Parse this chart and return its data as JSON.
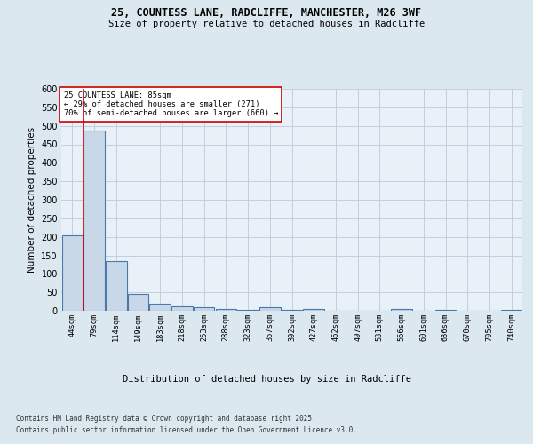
{
  "title_line1": "25, COUNTESS LANE, RADCLIFFE, MANCHESTER, M26 3WF",
  "title_line2": "Size of property relative to detached houses in Radcliffe",
  "xlabel": "Distribution of detached houses by size in Radcliffe",
  "ylabel": "Number of detached properties",
  "bar_labels": [
    "44sqm",
    "79sqm",
    "114sqm",
    "149sqm",
    "183sqm",
    "218sqm",
    "253sqm",
    "288sqm",
    "323sqm",
    "357sqm",
    "392sqm",
    "427sqm",
    "462sqm",
    "497sqm",
    "531sqm",
    "566sqm",
    "601sqm",
    "636sqm",
    "670sqm",
    "705sqm",
    "740sqm"
  ],
  "bar_values": [
    203,
    487,
    135,
    45,
    20,
    13,
    10,
    6,
    2,
    10,
    2,
    4,
    1,
    1,
    1,
    6,
    1,
    3,
    1,
    1,
    3
  ],
  "bar_color": "#c8d8e8",
  "bar_edge_color": "#4a7aaa",
  "subject_line_color": "#cc0000",
  "annotation_text": "25 COUNTESS LANE: 85sqm\n← 29% of detached houses are smaller (271)\n70% of semi-detached houses are larger (660) →",
  "annotation_box_color": "#ffffff",
  "annotation_box_edge": "#cc0000",
  "ylim": [
    0,
    600
  ],
  "yticks": [
    0,
    50,
    100,
    150,
    200,
    250,
    300,
    350,
    400,
    450,
    500,
    550,
    600
  ],
  "grid_color": "#c0c8d8",
  "background_color": "#dce8f0",
  "plot_bg_color": "#e8f0f8",
  "footer_line1": "Contains HM Land Registry data © Crown copyright and database right 2025.",
  "footer_line2": "Contains public sector information licensed under the Open Government Licence v3.0."
}
